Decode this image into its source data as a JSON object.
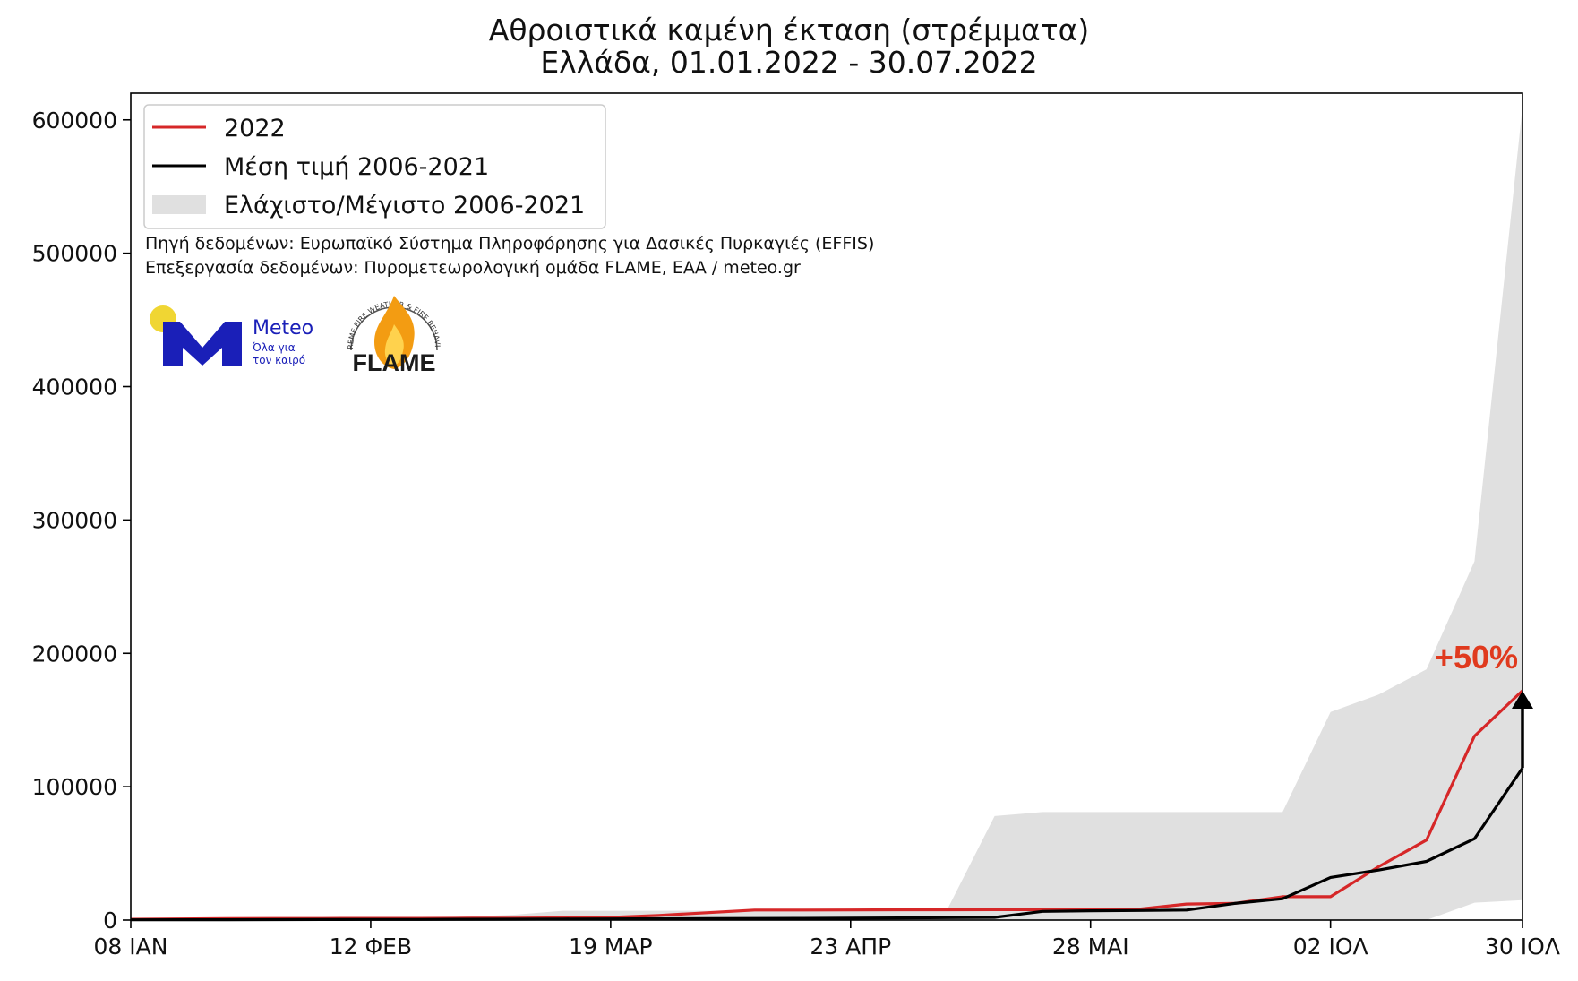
{
  "chart_data": {
    "type": "line",
    "title": "Αθροιστικά καμένη έκταση (στρέμματα)",
    "subtitle": "Ελλάδα, 01.01.2022 - 30.07.2022",
    "xlabel": "",
    "ylabel": "",
    "x_ticks": [
      "08 ΙΑΝ",
      "12 ΦΕΒ",
      "19 ΜΑΡ",
      "23 ΑΠΡ",
      "28 ΜΑΙ",
      "02 ΙΟΛ",
      "30 ΙΟΛ"
    ],
    "x_tick_dates": [
      "2022-01-08",
      "2022-02-12",
      "2022-03-19",
      "2022-04-23",
      "2022-05-28",
      "2022-07-02",
      "2022-07-30"
    ],
    "y_ticks": [
      0,
      100000,
      200000,
      300000,
      400000,
      500000,
      600000
    ],
    "y_tick_labels": [
      "0",
      "100000",
      "200000",
      "300000",
      "400000",
      "500000",
      "600000"
    ],
    "xlim": [
      "2022-01-08",
      "2022-07-30"
    ],
    "ylim": [
      0,
      620000
    ],
    "grid": false,
    "legend_position": "top-left",
    "x": [
      "2022-01-08",
      "2022-01-15",
      "2022-01-22",
      "2022-01-29",
      "2022-02-05",
      "2022-02-12",
      "2022-02-19",
      "2022-02-26",
      "2022-03-05",
      "2022-03-12",
      "2022-03-19",
      "2022-03-26",
      "2022-04-02",
      "2022-04-09",
      "2022-04-16",
      "2022-04-23",
      "2022-04-30",
      "2022-05-07",
      "2022-05-14",
      "2022-05-21",
      "2022-05-28",
      "2022-06-04",
      "2022-06-11",
      "2022-06-18",
      "2022-06-25",
      "2022-07-02",
      "2022-07-09",
      "2022-07-16",
      "2022-07-23",
      "2022-07-30"
    ],
    "series": [
      {
        "name": "2022",
        "color": "#d62728",
        "values": [
          600,
          900,
          1100,
          1200,
          1200,
          1300,
          1300,
          1400,
          1500,
          1700,
          2000,
          3500,
          5500,
          7500,
          7500,
          7600,
          7700,
          7700,
          7800,
          7800,
          8000,
          8200,
          12000,
          12500,
          17500,
          17500,
          40000,
          60000,
          138000,
          172000
        ]
      },
      {
        "name": "Μέση τιμή 2006-2021",
        "color": "#000000",
        "values": [
          200,
          250,
          300,
          350,
          400,
          450,
          500,
          600,
          700,
          800,
          900,
          1000,
          1100,
          1200,
          1300,
          1400,
          1600,
          1800,
          2000,
          6500,
          7000,
          7200,
          7500,
          12500,
          16000,
          32000,
          37500,
          44000,
          61000,
          114000
        ]
      },
      {
        "name": "Ελάχιστο/Μέγιστο 2006-2021",
        "color": "#e0e0e0",
        "min": [
          0,
          0,
          0,
          0,
          0,
          0,
          0,
          0,
          0,
          0,
          0,
          0,
          0,
          0,
          0,
          0,
          0,
          0,
          0,
          0,
          0,
          0,
          0,
          0,
          0,
          0,
          0,
          0,
          13000,
          15000
        ],
        "max": [
          1000,
          1200,
          1400,
          1600,
          1800,
          2000,
          2200,
          2500,
          4000,
          7000,
          7000,
          7000,
          7000,
          7000,
          7000,
          7000,
          7000,
          7000,
          78000,
          81000,
          81000,
          81000,
          81000,
          81000,
          81000,
          156000,
          169000,
          188000,
          269000,
          610000
        ]
      }
    ],
    "legend": [
      "2022",
      "Μέση τιμή 2006-2021",
      "Ελάχιστο/Μέγιστο 2006-2021"
    ],
    "annotation": {
      "text": "+50%",
      "color": "#e03a1e",
      "x": "2022-07-30",
      "from_y": 114000,
      "to_y": 172000
    },
    "credits": [
      "Πηγή δεδομένων: Ευρωπαϊκό Σύστημα Πληροφόρησης για Δασικές Πυρκαγιές (EFFIS)",
      "Επεξεργασία δεδομένων: Πυρομετεωρολογική ομάδα FLAME, ΕΑΑ / meteo.gr"
    ]
  },
  "logos": {
    "meteo": {
      "name": "Meteo",
      "tagline_1": "Όλα για",
      "tagline_2": "τον καιρό",
      "brand_color": "#1a1fb8",
      "sun_color": "#f0d633"
    },
    "flame": {
      "name": "FLAME",
      "ring_text": "EXTREME FIRE WEATHER & FIRE BEHAVIOUR",
      "icon": "flame-icon"
    }
  }
}
